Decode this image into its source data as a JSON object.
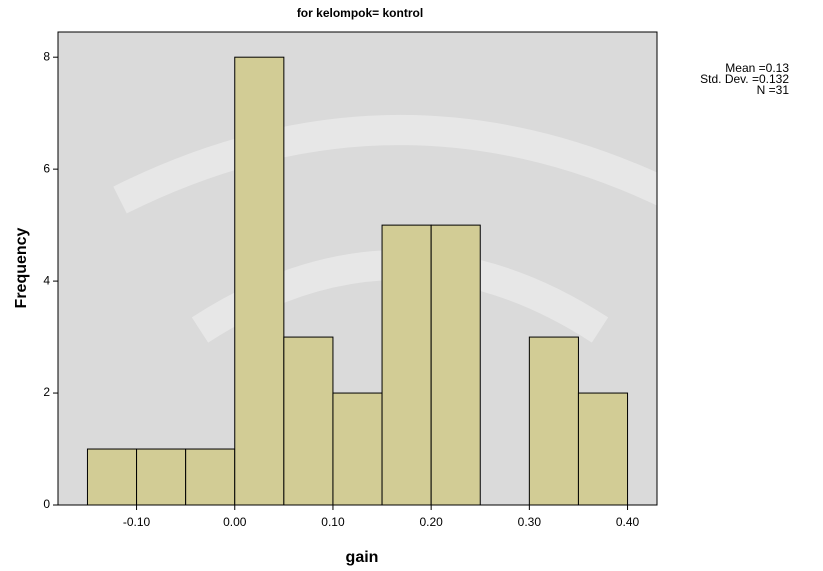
{
  "chart_data": {
    "type": "histogram",
    "title": "for kelompok= kontrol",
    "x_label": "gain",
    "y_label": "Frequency",
    "bins": [
      -0.15,
      -0.1,
      -0.05,
      0.0,
      0.05,
      0.1,
      0.15,
      0.2,
      0.25,
      0.3,
      0.35,
      0.4
    ],
    "values": [
      1,
      1,
      1,
      8,
      3,
      2,
      5,
      5,
      0,
      3,
      2
    ],
    "color": "#d2cc95",
    "xlim": [
      -0.18,
      0.43
    ],
    "xticks": [
      {
        "value": -0.1,
        "label": "-0.10"
      },
      {
        "value": 0.0,
        "label": "0.00"
      },
      {
        "value": 0.1,
        "label": "0.10"
      },
      {
        "value": 0.2,
        "label": "0.20"
      },
      {
        "value": 0.3,
        "label": "0.30"
      },
      {
        "value": 0.4,
        "label": "0.40"
      }
    ],
    "ylim": [
      0,
      8.45
    ],
    "yticks": [
      0,
      2,
      4,
      6,
      8
    ],
    "annotations": [
      "Mean =0.13",
      "Std. Dev. =0.132",
      "N =31"
    ]
  }
}
